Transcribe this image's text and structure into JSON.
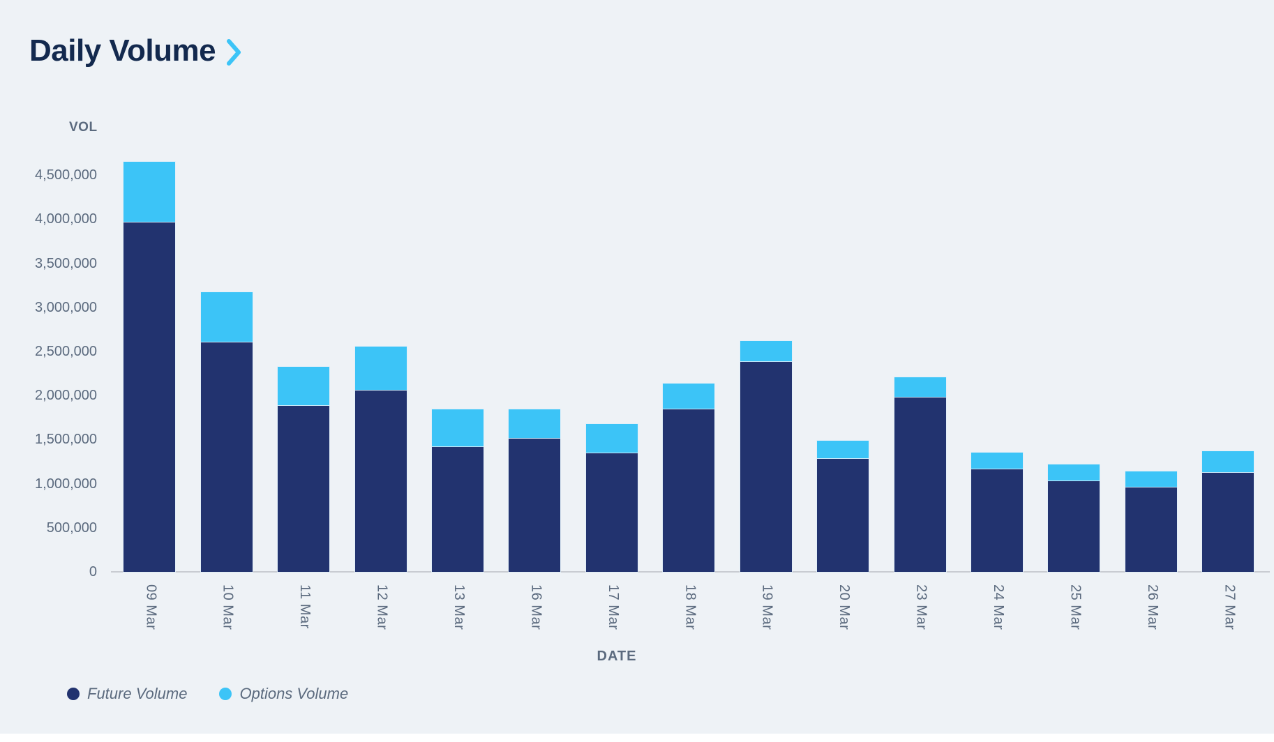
{
  "title": "Daily Volume",
  "colors": {
    "background": "#eef2f6",
    "title": "#13294e",
    "future": "#22336f",
    "options": "#3cc4f7",
    "chevron": "#3cc4f7",
    "axis_line": "#c9ccd2",
    "label_gray": "#5b6a7e"
  },
  "y_axis": {
    "label": "VOL",
    "tick_labels": [
      "4,500,000",
      "4,000,000",
      "3,500,000",
      "3,000,000",
      "2,500,000",
      "2,000,000",
      "1,500,000",
      "1,000,000",
      "500,000",
      "0"
    ]
  },
  "x_axis": {
    "label": "DATE"
  },
  "legend": [
    {
      "name": "Future Volume",
      "color": "#22336f"
    },
    {
      "name": "Options Volume",
      "color": "#3cc4f7"
    }
  ],
  "chart_data": {
    "type": "bar",
    "stacked": true,
    "title": "Daily Volume",
    "xlabel": "DATE",
    "ylabel": "VOL",
    "ylim": [
      0,
      4750000
    ],
    "y_tick_step": 500000,
    "grid": false,
    "legend_position": "bottom-left",
    "categories": [
      "09 Mar",
      "10 Mar",
      "11 Mar",
      "12 Mar",
      "13 Mar",
      "16 Mar",
      "17 Mar",
      "18 Mar",
      "19 Mar",
      "20 Mar",
      "23 Mar",
      "24 Mar",
      "25 Mar",
      "26 Mar",
      "27 Mar"
    ],
    "series": [
      {
        "name": "Future Volume",
        "color": "#22336f",
        "values": [
          3960000,
          2600000,
          1885000,
          2055000,
          1420000,
          1510000,
          1345000,
          1845000,
          2380000,
          1285000,
          1980000,
          1160000,
          1030000,
          960000,
          1120000
        ]
      },
      {
        "name": "Options Volume",
        "color": "#3cc4f7",
        "values": [
          690000,
          570000,
          440000,
          500000,
          420000,
          335000,
          330000,
          290000,
          240000,
          205000,
          230000,
          190000,
          185000,
          180000,
          250000
        ]
      }
    ]
  }
}
